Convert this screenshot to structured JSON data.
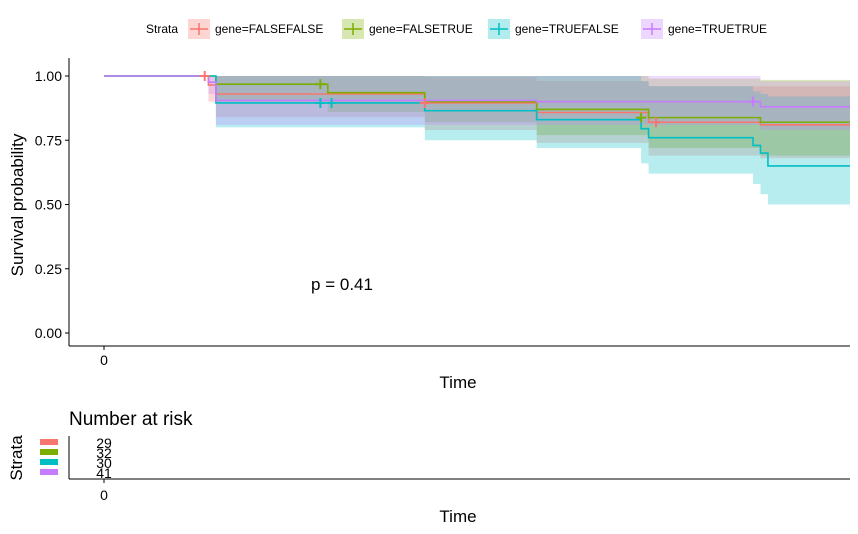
{
  "chart_data": [
    {
      "type": "line",
      "subtype": "kaplan-meier",
      "ylabel": "Survival probability",
      "xlabel": "Time",
      "ylim": [
        0,
        1
      ],
      "yticks": [
        "0.00",
        "0.25",
        "0.50",
        "0.75",
        "1.00"
      ],
      "xlim": [
        0,
        100
      ],
      "xticks": [
        "0"
      ],
      "annotation": "p = 0.41",
      "legend": {
        "title": "Strata",
        "position": "top",
        "entries": [
          "gene=FALSEFALSE",
          "gene=FALSETRUE",
          "gene=TRUEFALSE",
          "gene=TRUETRUE"
        ]
      },
      "series": [
        {
          "name": "gene=FALSEFALSE",
          "color": "#F8766D",
          "steps": [
            [
              0,
              1
            ],
            [
              14,
              0.965
            ],
            [
              15,
              0.93
            ],
            [
              43,
              0.895
            ],
            [
              58,
              0.858
            ],
            [
              73,
              0.82
            ],
            [
              88,
              0.81
            ],
            [
              100,
              0.81
            ]
          ],
          "ci_steps": [
            [
              0,
              1,
              1
            ],
            [
              14,
              0.9,
              1
            ],
            [
              15,
              0.84,
              1
            ],
            [
              43,
              0.79,
              0.995
            ],
            [
              58,
              0.74,
              0.98
            ],
            [
              73,
              0.69,
              0.96
            ],
            [
              88,
              0.68,
              0.96
            ],
            [
              100,
              0.68,
              0.96
            ]
          ],
          "censor_points": [
            [
              13.5,
              1
            ],
            [
              43,
              0.895
            ],
            [
              74,
              0.82
            ]
          ]
        },
        {
          "name": "gene=FALSETRUE",
          "color": "#7CAE00",
          "steps": [
            [
              0,
              1
            ],
            [
              15,
              0.968
            ],
            [
              30,
              0.935
            ],
            [
              43,
              0.9
            ],
            [
              58,
              0.87
            ],
            [
              73,
              0.838
            ],
            [
              88,
              0.82
            ],
            [
              100,
              0.82
            ]
          ],
          "ci_steps": [
            [
              0,
              1,
              1
            ],
            [
              15,
              0.9,
              1
            ],
            [
              30,
              0.86,
              1
            ],
            [
              43,
              0.82,
              1
            ],
            [
              58,
              0.77,
              1
            ],
            [
              73,
              0.72,
              0.99
            ],
            [
              88,
              0.69,
              0.985
            ],
            [
              100,
              0.69,
              0.985
            ]
          ],
          "censor_points": [
            [
              29,
              0.968
            ],
            [
              72,
              0.838
            ]
          ]
        },
        {
          "name": "gene=TRUEFALSE",
          "color": "#00BFC4",
          "steps": [
            [
              0,
              1
            ],
            [
              15,
              0.895
            ],
            [
              43,
              0.865
            ],
            [
              58,
              0.83
            ],
            [
              72,
              0.795
            ],
            [
              73,
              0.76
            ],
            [
              87,
              0.73
            ],
            [
              88,
              0.7
            ],
            [
              89,
              0.65
            ],
            [
              100,
              0.65
            ]
          ],
          "ci_steps": [
            [
              0,
              1,
              1
            ],
            [
              15,
              0.8,
              1
            ],
            [
              43,
              0.75,
              1
            ],
            [
              58,
              0.72,
              1
            ],
            [
              72,
              0.66,
              0.98
            ],
            [
              73,
              0.62,
              0.96
            ],
            [
              87,
              0.58,
              0.94
            ],
            [
              88,
              0.54,
              0.93
            ],
            [
              89,
              0.5,
              0.92
            ],
            [
              100,
              0.5,
              0.92
            ]
          ],
          "censor_points": [
            [
              29,
              0.895
            ],
            [
              30.5,
              0.895
            ]
          ]
        },
        {
          "name": "gene=TRUETRUE",
          "color": "#C77CFF",
          "steps": [
            [
              0,
              1
            ],
            [
              14,
              0.976
            ],
            [
              15,
              0.905
            ],
            [
              58,
              0.9
            ],
            [
              88,
              0.88
            ],
            [
              100,
              0.88
            ]
          ],
          "ci_steps": [
            [
              0,
              1,
              1
            ],
            [
              14,
              0.93,
              1
            ],
            [
              15,
              0.81,
              1
            ],
            [
              58,
              0.81,
              1
            ],
            [
              88,
              0.79,
              0.98
            ],
            [
              100,
              0.79,
              0.98
            ]
          ],
          "censor_points": [
            [
              87,
              0.9
            ]
          ]
        }
      ]
    },
    {
      "type": "table",
      "title": "Number at risk",
      "ylabel": "Strata",
      "xlabel": "Time",
      "xticks": [
        "0"
      ],
      "rows": [
        {
          "name": "gene=FALSEFALSE",
          "color": "#F8766D",
          "values": [
            "29"
          ]
        },
        {
          "name": "gene=FALSETRUE",
          "color": "#7CAE00",
          "values": [
            "32"
          ]
        },
        {
          "name": "gene=TRUEFALSE",
          "color": "#00BFC4",
          "values": [
            "30"
          ]
        },
        {
          "name": "gene=TRUETRUE",
          "color": "#C77CFF",
          "values": [
            "41"
          ]
        }
      ]
    }
  ]
}
